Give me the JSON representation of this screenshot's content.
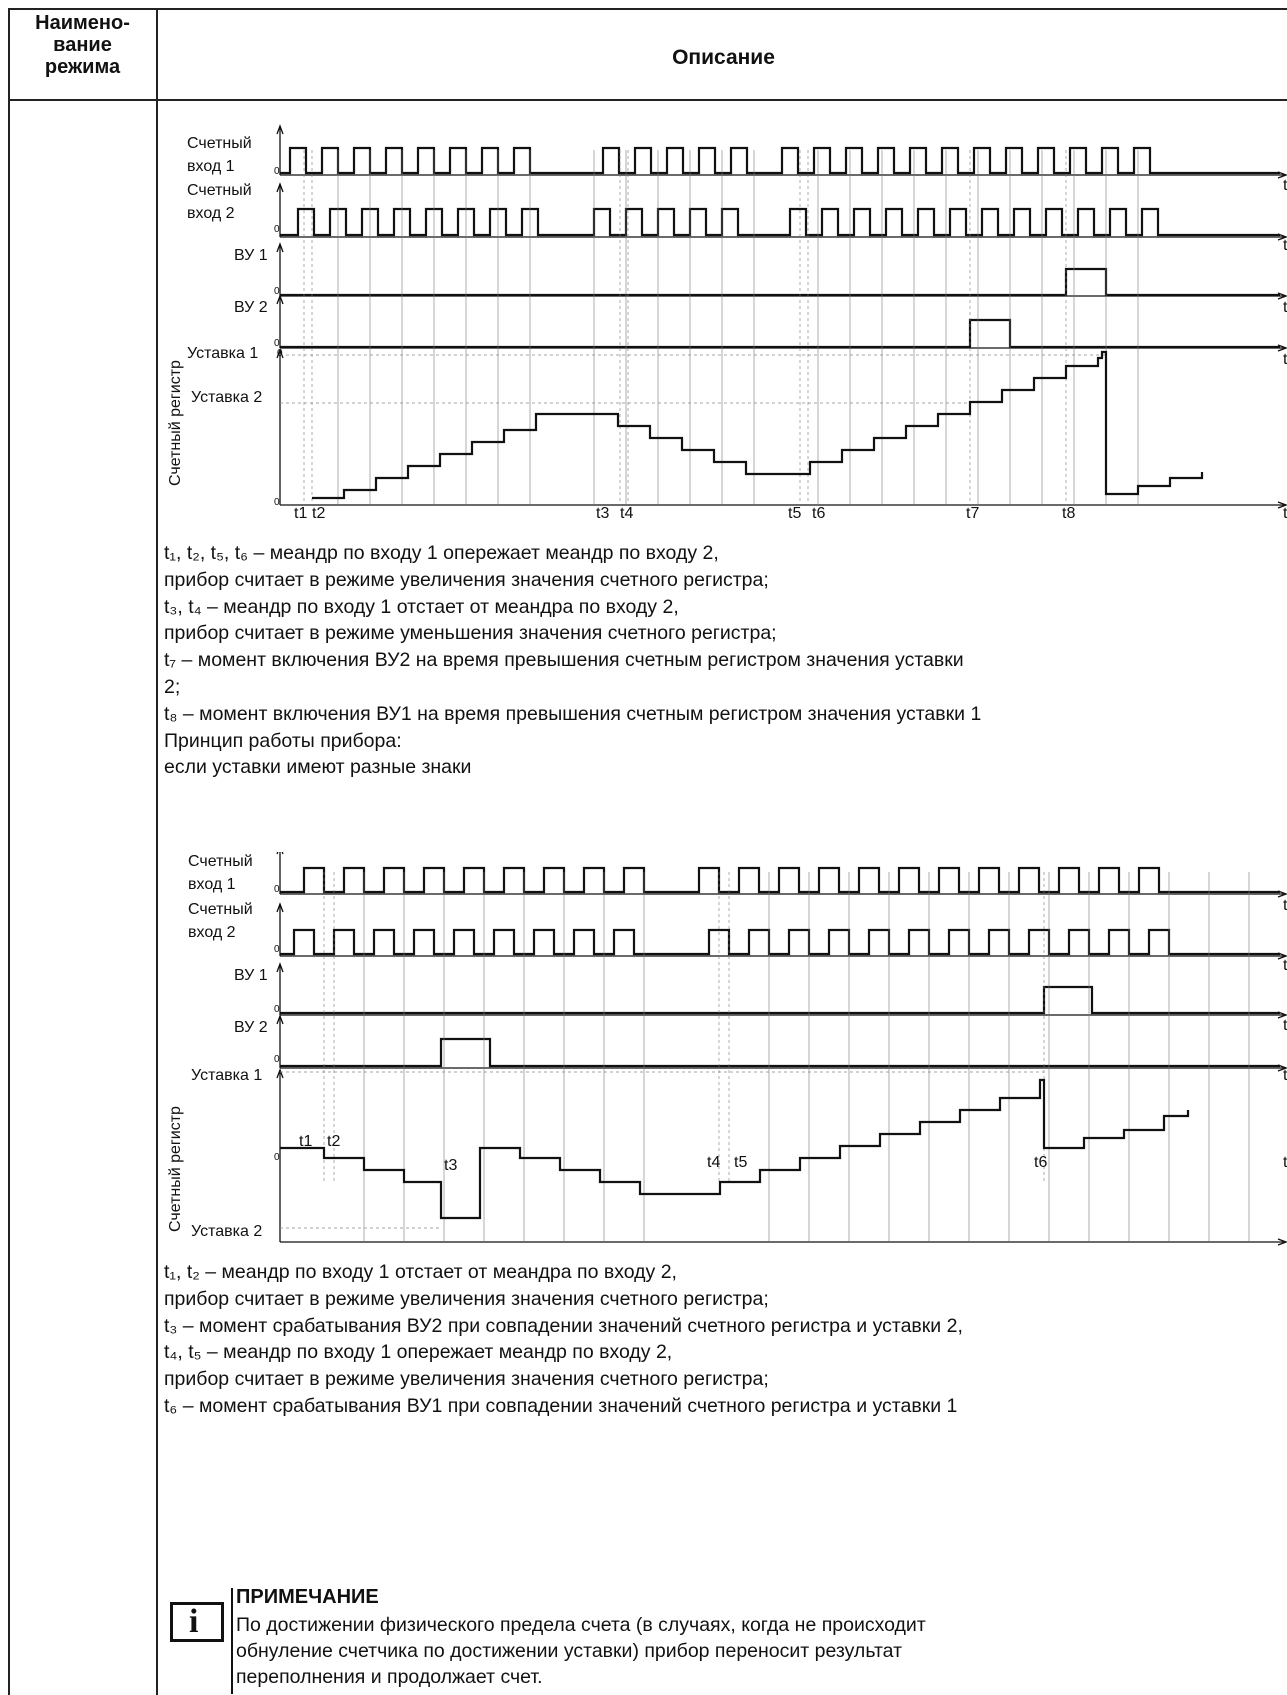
{
  "table": {
    "col1_header": "Наимено-\nвание\nрежима",
    "col2_header": "Описание"
  },
  "diagram1": {
    "labels": {
      "in1_a": "Счетный",
      "in1_b": "вход 1",
      "in2_a": "Счетный",
      "in2_b": "вход 2",
      "vu1": "ВУ 1",
      "vu2": "ВУ 2",
      "set1": "Уставка 1",
      "set2": "Уставка 2",
      "register": "Счетный регистр",
      "zero": "0",
      "t": "t"
    },
    "markers": [
      "t1",
      "t2",
      "t3",
      "t4",
      "t5",
      "t6",
      "t7",
      "t8"
    ]
  },
  "text1": [
    "t₁, t₂, t₅, t₆ – меандр по входу 1 опережает меандр по входу 2,",
    "прибор считает в режиме увеличения значения счетного регистра;",
    "t₃, t₄  – меандр по входу 1 отстает от меандра по входу 2,",
    "прибор считает в режиме уменьшения значения счетного регистра;",
    "t₇ – момент включения ВУ2 на время превышения счетным регистром значения уставки",
    "2;",
    "t₈ – момент включения ВУ1 на время превышения счетным регистром значения уставки 1",
    "Принцип работы прибора:",
    "если уставки имеют разные знаки"
  ],
  "diagram2": {
    "labels": {
      "in1_a": "Счетный",
      "in1_b": "вход 1",
      "in2_a": "Счетный",
      "in2_b": "вход 2",
      "vu1": "ВУ 1",
      "vu2": "ВУ 2",
      "set1": "Уставка 1",
      "set2": "Уставка 2",
      "register": "Счетный регистр",
      "zero": "0",
      "t": "t"
    },
    "markers": [
      "t1",
      "t2",
      "t3",
      "t4",
      "t5",
      "t6"
    ]
  },
  "text2": [
    "t₁, t₂ – меандр по входу 1 отстает от меандра по входу 2,",
    "прибор считает в режиме увеличения значения счетного регистра;",
    "t₃ – момент срабатывания ВУ2 при совпадении значений счетного регистра и уставки 2,",
    "t₄, t₅  – меандр по входу 1 опережает меандр по входу 2,",
    "прибор считает в режиме увеличения значения счетного регистра;",
    "t₆ – момент срабатывания ВУ1 при совпадении значений счетного регистра и уставки 1"
  ],
  "note": {
    "icon": "info-icon",
    "icon_glyph": "i",
    "title": "ПРИМЕЧАНИЕ",
    "lines": [
      "По достижении физического предела счета (в случаях, когда не происходит",
      "обнуление счетчика по достижении уставки) прибор переносит результат",
      "переполнения и продолжает счет."
    ]
  }
}
